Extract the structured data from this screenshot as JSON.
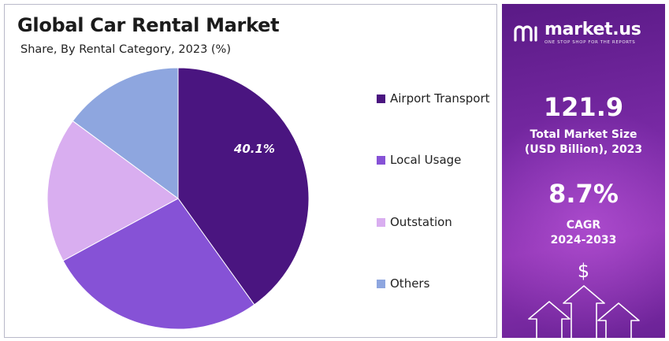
{
  "chart_data": {
    "type": "pie",
    "title": "Global Car Rental Market",
    "subtitle": "Share, By Rental Category, 2023 (%)",
    "slices": [
      {
        "label": "Airport Transport",
        "value": 40.1,
        "color": "#4a1580",
        "data_label": "40.1%"
      },
      {
        "label": "Local Usage",
        "value": 27.0,
        "color": "#8652d6",
        "data_label": ""
      },
      {
        "label": "Outstation",
        "value": 18.0,
        "color": "#d9aef0",
        "data_label": ""
      },
      {
        "label": "Others",
        "value": 14.9,
        "color": "#8ea6df",
        "data_label": ""
      }
    ],
    "legend": "right"
  },
  "panel": {
    "brand_name": "market.us",
    "brand_tagline": "ONE STOP SHOP FOR THE REPORTS",
    "market_size_value": "121.9",
    "market_size_label_line1": "Total Market Size",
    "market_size_label_line2": "(USD Billion), 2023",
    "cagr_value": "8.7%",
    "cagr_label_line1": "CAGR",
    "cagr_label_line2": "2024-2033",
    "dollar_symbol": "$",
    "colors": {
      "gradient_top": "#5a1a86",
      "gradient_mid": "#8d33b2"
    }
  }
}
